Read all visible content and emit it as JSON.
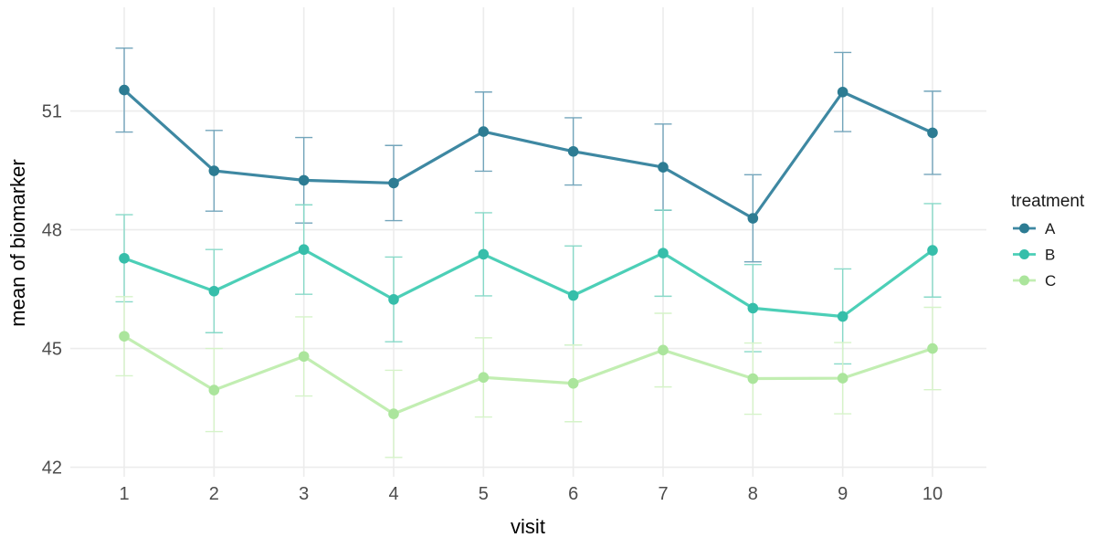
{
  "chart_data": {
    "type": "line",
    "title": "",
    "xlabel": "visit",
    "ylabel": "mean of biomarker",
    "legend_title": "treatment",
    "legend_position": "right",
    "grid": true,
    "error_bars": true,
    "x": [
      1,
      2,
      3,
      4,
      5,
      6,
      7,
      8,
      9,
      10
    ],
    "xlim": [
      0.4,
      10.6
    ],
    "ylim": [
      41.76,
      53.62
    ],
    "yticks": [
      42,
      45,
      48,
      51
    ],
    "series": [
      {
        "name": "A",
        "point_color": "#2D7C93",
        "line_color": "#3E88A2",
        "error_color": "#73A5BB",
        "values": [
          51.53,
          49.49,
          49.25,
          49.18,
          50.48,
          49.98,
          49.58,
          48.29,
          51.48,
          50.45
        ],
        "se": [
          1.06,
          1.02,
          1.08,
          0.95,
          1.0,
          0.85,
          1.09,
          1.1,
          1.0,
          1.05
        ]
      },
      {
        "name": "B",
        "point_color": "#36BEAA",
        "line_color": "#4CCFB7",
        "error_color": "#88D9C8",
        "values": [
          47.28,
          46.45,
          47.5,
          46.24,
          47.38,
          46.34,
          47.41,
          46.02,
          45.81,
          47.48
        ],
        "se": [
          1.1,
          1.05,
          1.13,
          1.07,
          1.05,
          1.25,
          1.09,
          1.1,
          1.2,
          1.18
        ]
      },
      {
        "name": "C",
        "point_color": "#ABE59C",
        "line_color": "#C2EEB2",
        "error_color": "#D6F3C9",
        "values": [
          45.31,
          43.95,
          44.8,
          43.35,
          44.27,
          44.12,
          44.96,
          44.24,
          44.25,
          45.0
        ],
        "se": [
          1.0,
          1.05,
          1.0,
          1.1,
          1.0,
          0.97,
          0.93,
          0.9,
          0.9,
          1.04
        ]
      }
    ],
    "style": {
      "gridline_color": "#ECECEC",
      "tick_label_color": "#4D4D4D",
      "axis_title_color": "#000000",
      "background": "#FFFFFF"
    }
  }
}
